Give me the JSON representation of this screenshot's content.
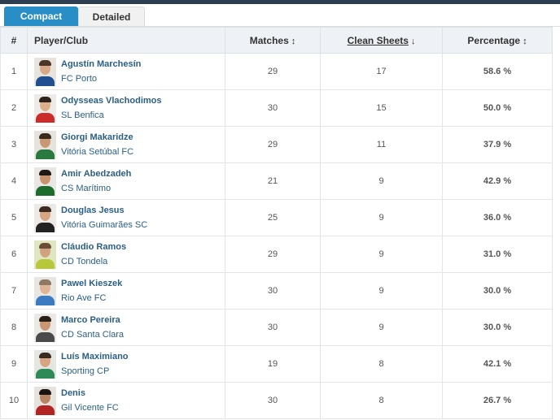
{
  "tabs": [
    {
      "label": "Compact",
      "active": true
    },
    {
      "label": "Detailed",
      "active": false
    }
  ],
  "columns": {
    "rank": "#",
    "player": "Player/Club",
    "matches": {
      "label": "Matches",
      "arrow": "↕"
    },
    "clean_sheets": {
      "label": "Clean Sheets",
      "arrow": "↓"
    },
    "percentage": {
      "label": "Percentage",
      "arrow": "↕"
    }
  },
  "rows": [
    {
      "rank": "1",
      "name": "Agustín Marchesín",
      "club": "FC Porto",
      "matches": "29",
      "clean_sheets": "17",
      "percentage": "58.6 %",
      "avatar": {
        "bg": "#e7e4df",
        "skin": "#d9a987",
        "hair": "#4a3526",
        "shirt": "#1f4f8f"
      }
    },
    {
      "rank": "2",
      "name": "Odysseas Vlachodimos",
      "club": "SL Benfica",
      "matches": "30",
      "clean_sheets": "15",
      "percentage": "50.0 %",
      "avatar": {
        "bg": "#ecebe8",
        "skin": "#dcae8c",
        "hair": "#2f241b",
        "shirt": "#cc2b2b"
      }
    },
    {
      "rank": "3",
      "name": "Giorgi Makaridze",
      "club": "Vitória Setúbal FC",
      "matches": "29",
      "clean_sheets": "11",
      "percentage": "37.9 %",
      "avatar": {
        "bg": "#e6e3de",
        "skin": "#c99774",
        "hair": "#3a2a1e",
        "shirt": "#2a7a3f"
      }
    },
    {
      "rank": "4",
      "name": "Amir Abedzadeh",
      "club": "CS Marítimo",
      "matches": "21",
      "clean_sheets": "9",
      "percentage": "42.9 %",
      "avatar": {
        "bg": "#e9e7e4",
        "skin": "#c9936f",
        "hair": "#201813",
        "shirt": "#1d6b2d"
      }
    },
    {
      "rank": "5",
      "name": "Douglas Jesus",
      "club": "Vitória Guimarães SC",
      "matches": "25",
      "clean_sheets": "9",
      "percentage": "36.0 %",
      "avatar": {
        "bg": "#eceae6",
        "skin": "#d6a582",
        "hair": "#3b2b20",
        "shirt": "#222222"
      }
    },
    {
      "rank": "6",
      "name": "Cláudio Ramos",
      "club": "CD Tondela",
      "matches": "29",
      "clean_sheets": "9",
      "percentage": "31.0 %",
      "avatar": {
        "bg": "#dfe7c2",
        "skin": "#d2a27f",
        "hair": "#6a4f36",
        "shirt": "#b9c83a"
      }
    },
    {
      "rank": "7",
      "name": "Pawel Kieszek",
      "club": "Rio Ave FC",
      "matches": "30",
      "clean_sheets": "9",
      "percentage": "30.0 %",
      "avatar": {
        "bg": "#e8e6e2",
        "skin": "#e0b596",
        "hair": "#8e7a62",
        "shirt": "#3c7ac2"
      }
    },
    {
      "rank": "8",
      "name": "Marco Pereira",
      "club": "CD Santa Clara",
      "matches": "30",
      "clean_sheets": "9",
      "percentage": "30.0 %",
      "avatar": {
        "bg": "#eae8e4",
        "skin": "#c99573",
        "hair": "#2a1f17",
        "shirt": "#4a4a4a"
      }
    },
    {
      "rank": "9",
      "name": "Luís Maximiano",
      "club": "Sporting CP",
      "matches": "19",
      "clean_sheets": "8",
      "percentage": "42.1 %",
      "avatar": {
        "bg": "#e4e6e2",
        "skin": "#d7a584",
        "hair": "#3a2b22",
        "shirt": "#2e8b57"
      }
    },
    {
      "rank": "10",
      "name": "Denis",
      "club": "Gil Vicente FC",
      "matches": "30",
      "clean_sheets": "8",
      "percentage": "26.7 %",
      "avatar": {
        "bg": "#e6e2dd",
        "skin": "#b98464",
        "hair": "#1b1410",
        "shirt": "#b32424"
      }
    }
  ]
}
